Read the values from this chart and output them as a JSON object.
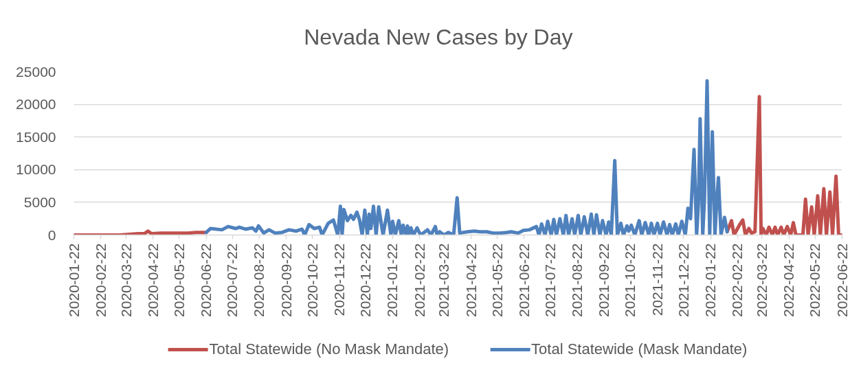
{
  "chart_data": {
    "type": "line",
    "title": "Nevada New Cases by Day",
    "xlim": [
      "2020-01-22",
      "2022-06-22"
    ],
    "xticks": [
      "2020-01-22",
      "2020-02-22",
      "2020-03-22",
      "2020-04-22",
      "2020-05-22",
      "2020-06-22",
      "2020-07-22",
      "2020-08-22",
      "2020-09-22",
      "2020-10-22",
      "2020-11-22",
      "2020-12-22",
      "2021-01-22",
      "2021-02-22",
      "2021-03-22",
      "2021-04-22",
      "2021-05-22",
      "2021-06-22",
      "2021-07-22",
      "2021-08-22",
      "2021-09-22",
      "2021-10-22",
      "2021-11-22",
      "2021-12-22",
      "2022-01-22",
      "2022-02-22",
      "2022-03-22",
      "2022-04-22",
      "2022-05-22",
      "2022-06-22"
    ],
    "ylim": [
      0,
      25000
    ],
    "yticks": [
      0,
      5000,
      10000,
      15000,
      20000,
      25000
    ],
    "grid": "y",
    "legend": "bottom",
    "series": [
      {
        "name": "Total Statewide (No Mask Mandate)",
        "color": "#c0504d",
        "x": [
          "2020-01-22",
          "2020-03-01",
          "2020-03-15",
          "2020-03-25",
          "2020-04-05",
          "2020-04-12",
          "2020-04-16",
          "2020-04-20",
          "2020-05-01",
          "2020-05-10",
          "2020-05-20",
          "2020-06-01",
          "2020-06-10",
          "2020-06-22",
          "2021-06-22",
          "2022-02-10",
          "2022-02-15",
          "2022-02-18",
          "2022-02-22",
          "2022-02-24",
          "2022-02-28",
          "2022-03-03",
          "2022-03-07",
          "2022-03-10",
          "2022-03-14",
          "2022-03-19",
          "2022-03-21",
          "2022-03-23",
          "2022-03-27",
          "2022-03-30",
          "2022-04-03",
          "2022-04-06",
          "2022-04-09",
          "2022-04-13",
          "2022-04-16",
          "2022-04-20",
          "2022-04-24",
          "2022-04-27",
          "2022-04-30",
          "2022-05-08",
          "2022-05-11",
          "2022-05-14",
          "2022-05-18",
          "2022-05-21",
          "2022-05-25",
          "2022-05-28",
          "2022-06-01",
          "2022-06-04",
          "2022-06-08",
          "2022-06-11",
          "2022-06-15",
          "2022-06-18",
          "2022-06-22"
        ],
        "values": [
          0,
          0,
          0,
          100,
          200,
          200,
          600,
          200,
          300,
          300,
          300,
          300,
          400,
          400,
          null,
          500,
          2200,
          0,
          1000,
          1500,
          2300,
          0,
          1000,
          300,
          500,
          21200,
          0,
          1000,
          0,
          1200,
          0,
          1200,
          0,
          1200,
          0,
          1300,
          0,
          1900,
          0,
          0,
          5500,
          0,
          4300,
          0,
          6000,
          0,
          7100,
          0,
          6600,
          0,
          9000,
          0,
          0
        ]
      },
      {
        "name": "Total Statewide (Mask Mandate)",
        "color": "#4f81bd",
        "x": [
          "2020-06-22",
          "2020-06-27",
          "2020-07-10",
          "2020-07-17",
          "2020-07-26",
          "2020-07-30",
          "2020-08-06",
          "2020-08-14",
          "2020-08-18",
          "2020-08-21",
          "2020-08-27",
          "2020-09-02",
          "2020-09-09",
          "2020-09-17",
          "2020-09-25",
          "2020-10-03",
          "2020-10-10",
          "2020-10-13",
          "2020-10-18",
          "2020-10-24",
          "2020-10-30",
          "2020-11-02",
          "2020-11-09",
          "2020-11-15",
          "2020-11-20",
          "2020-11-23",
          "2020-11-25",
          "2020-11-27",
          "2020-12-01",
          "2020-12-05",
          "2020-12-08",
          "2020-12-12",
          "2020-12-15",
          "2020-12-18",
          "2020-12-21",
          "2020-12-24",
          "2020-12-26",
          "2020-12-28",
          "2020-12-31",
          "2021-01-03",
          "2021-01-06",
          "2021-01-11",
          "2021-01-16",
          "2021-01-20",
          "2021-01-22",
          "2021-01-25",
          "2021-01-29",
          "2021-02-01",
          "2021-02-03",
          "2021-02-06",
          "2021-02-08",
          "2021-02-10",
          "2021-02-12",
          "2021-02-15",
          "2021-02-19",
          "2021-02-23",
          "2021-03-03",
          "2021-03-07",
          "2021-03-12",
          "2021-03-14",
          "2021-03-17",
          "2021-03-22",
          "2021-03-27",
          "2021-04-02",
          "2021-04-06",
          "2021-04-09",
          "2021-04-18",
          "2021-04-26",
          "2021-05-02",
          "2021-05-10",
          "2021-05-17",
          "2021-05-25",
          "2021-06-02",
          "2021-06-07",
          "2021-06-15",
          "2021-06-21",
          "2021-06-28",
          "2021-07-06",
          "2021-07-09",
          "2021-07-12",
          "2021-07-16",
          "2021-07-19",
          "2021-07-23",
          "2021-07-26",
          "2021-07-29",
          "2021-08-02",
          "2021-08-06",
          "2021-08-09",
          "2021-08-12",
          "2021-08-16",
          "2021-08-19",
          "2021-08-23",
          "2021-08-26",
          "2021-08-30",
          "2021-09-03",
          "2021-09-07",
          "2021-09-10",
          "2021-09-13",
          "2021-09-17",
          "2021-09-20",
          "2021-09-24",
          "2021-09-27",
          "2021-09-30",
          "2021-10-04",
          "2021-10-07",
          "2021-10-11",
          "2021-10-14",
          "2021-10-18",
          "2021-10-20",
          "2021-10-23",
          "2021-10-27",
          "2021-11-01",
          "2021-11-04",
          "2021-11-08",
          "2021-11-12",
          "2021-11-15",
          "2021-11-18",
          "2021-11-22",
          "2021-11-25",
          "2021-11-29",
          "2021-12-03",
          "2021-12-06",
          "2021-12-09",
          "2021-12-13",
          "2021-12-16",
          "2021-12-20",
          "2021-12-24",
          "2021-12-27",
          "2021-12-30",
          "2022-01-03",
          "2022-01-06",
          "2022-01-08",
          "2022-01-10",
          "2022-01-13",
          "2022-01-15",
          "2022-01-18",
          "2022-01-21",
          "2022-01-24",
          "2022-01-27",
          "2022-01-29",
          "2022-01-31",
          "2022-02-03",
          "2022-02-07",
          "2022-02-10"
        ],
        "values": [
          400,
          1000,
          800,
          1300,
          1000,
          1200,
          900,
          1100,
          600,
          1400,
          300,
          800,
          300,
          400,
          800,
          600,
          900,
          0,
          1600,
          1000,
          1200,
          0,
          1800,
          2300,
          0,
          4400,
          0,
          3900,
          2200,
          3000,
          2400,
          3500,
          2300,
          0,
          3800,
          0,
          3200,
          1000,
          4400,
          0,
          4300,
          0,
          3800,
          0,
          2100,
          0,
          2200,
          0,
          1500,
          0,
          1400,
          0,
          1100,
          0,
          1100,
          0,
          800,
          0,
          1300,
          0,
          500,
          0,
          400,
          0,
          5700,
          300,
          500,
          600,
          500,
          500,
          300,
          300,
          400,
          500,
          300,
          700,
          800,
          1300,
          0,
          1700,
          0,
          2100,
          0,
          2400,
          0,
          2500,
          0,
          3000,
          0,
          2500,
          0,
          3000,
          0,
          2800,
          0,
          3200,
          0,
          3100,
          0,
          2200,
          0,
          2000,
          0,
          11400,
          0,
          1800,
          0,
          1400,
          600,
          1500,
          0,
          2200,
          0,
          1900,
          0,
          1800,
          0,
          1800,
          0,
          2000,
          0,
          1600,
          0,
          1700,
          0,
          2100,
          0,
          4100,
          2500,
          13100,
          0,
          4800,
          17800,
          0,
          5600,
          23600,
          0,
          15800,
          0,
          5000,
          8800,
          0,
          2700,
          500
        ]
      }
    ]
  }
}
